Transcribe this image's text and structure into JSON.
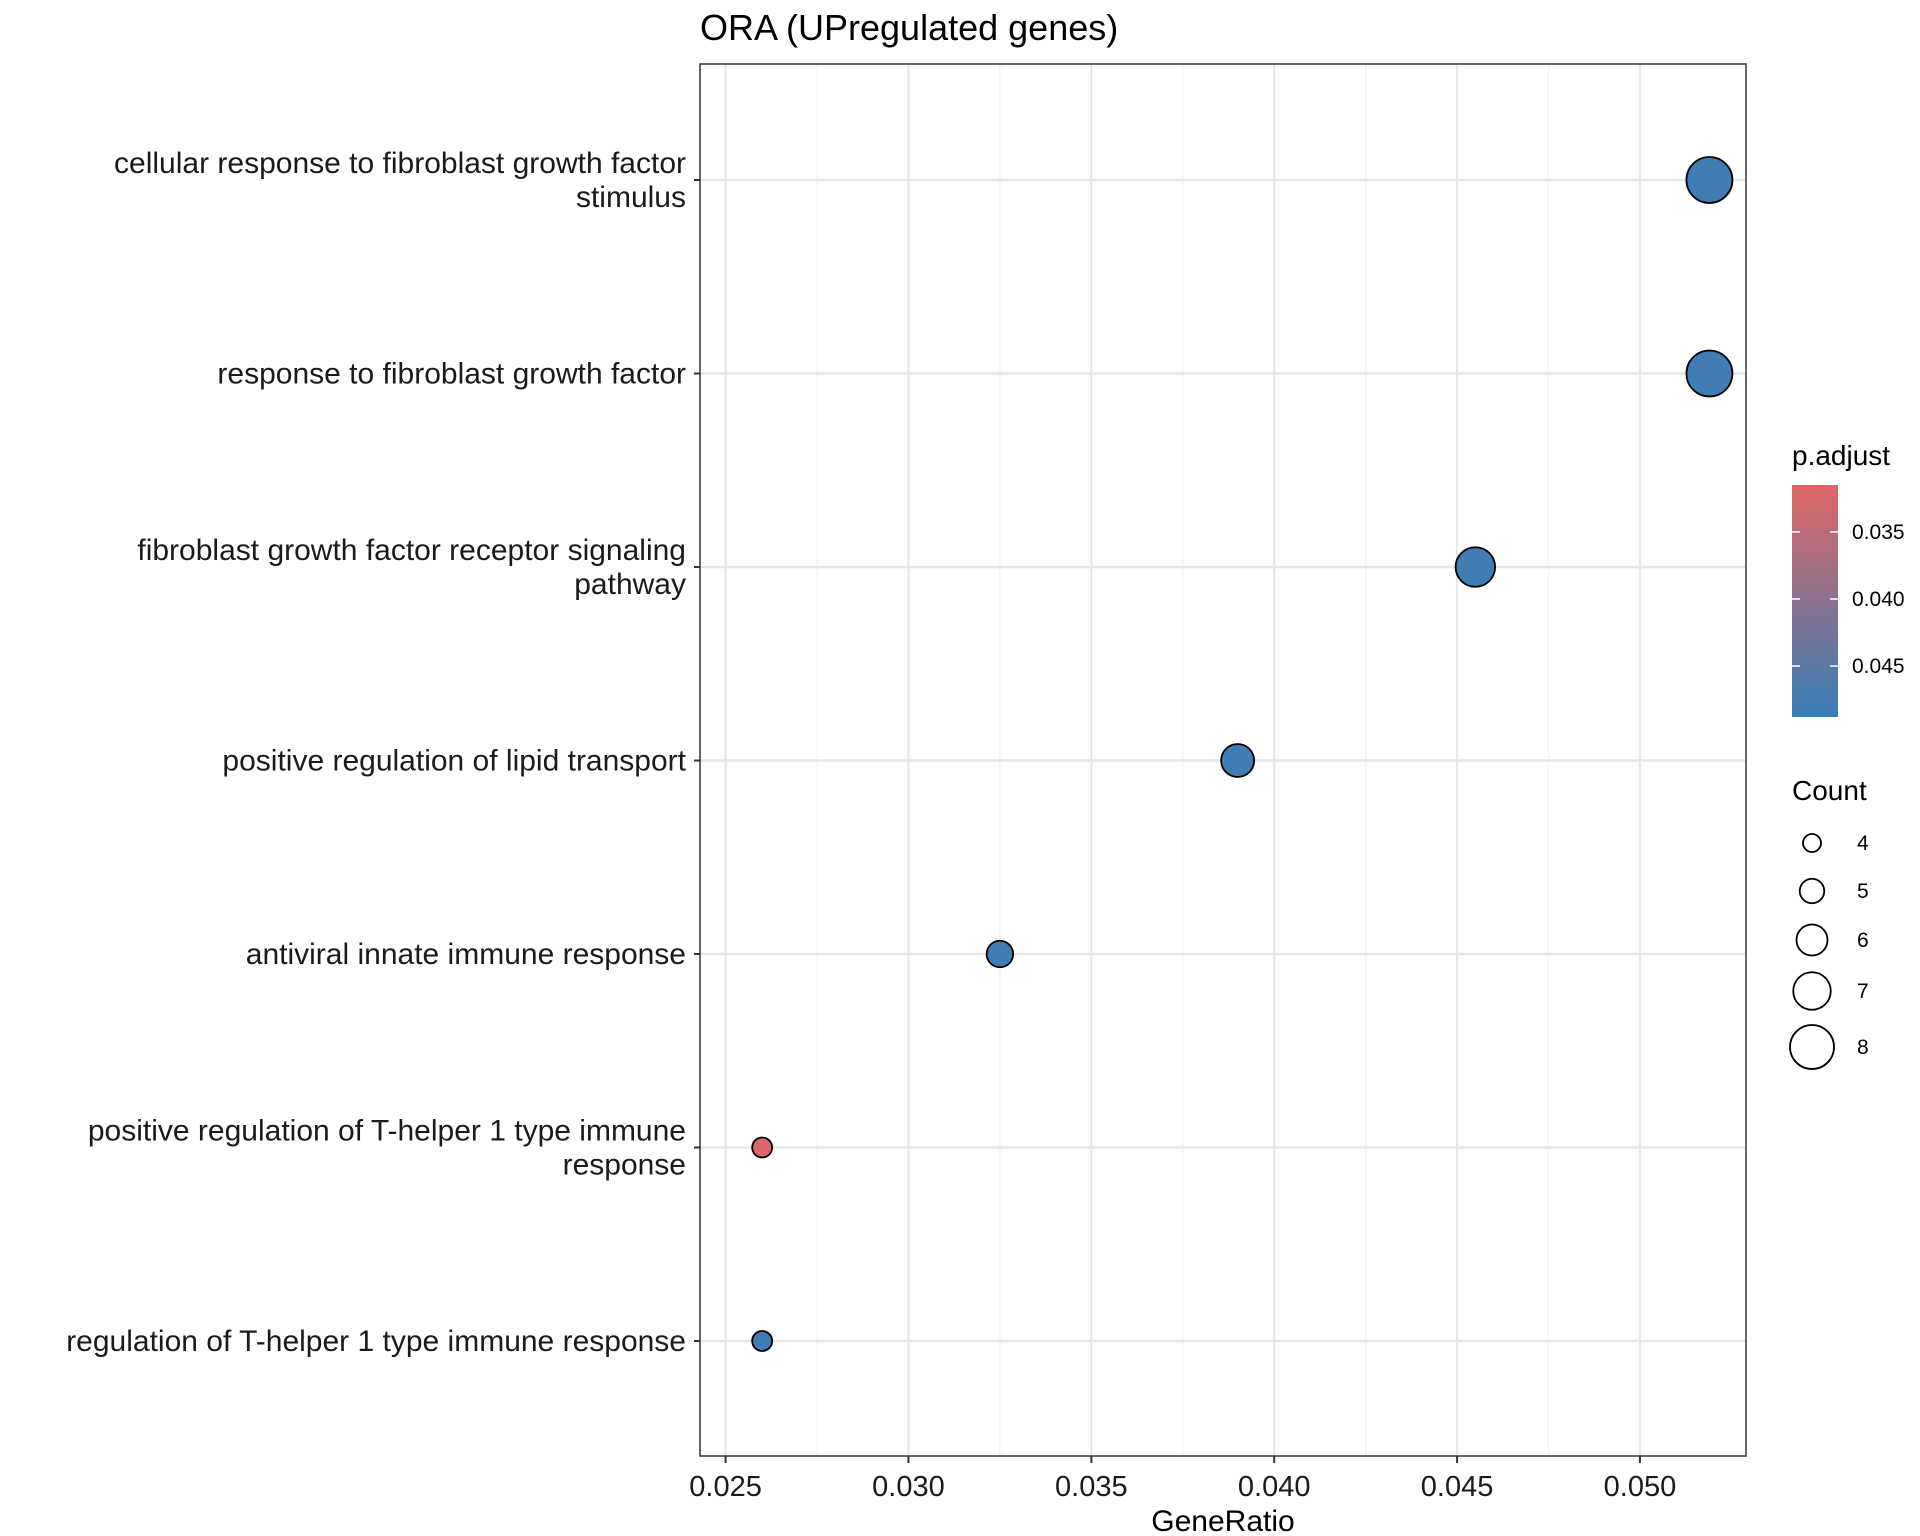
{
  "chart_data": {
    "type": "scatter",
    "title": "ORA (UPregulated genes)",
    "xlabel": "GeneRatio",
    "ylabel": "",
    "xlim": [
      0.0243,
      0.0529
    ],
    "xticks": [
      0.025,
      0.03,
      0.035,
      0.04,
      0.045,
      0.05
    ],
    "xtick_labels": [
      "0.025",
      "0.030",
      "0.035",
      "0.040",
      "0.045",
      "0.050"
    ],
    "grid": true,
    "categories": [
      {
        "lines": [
          "cellular response to fibroblast growth factor",
          "stimulus"
        ]
      },
      {
        "lines": [
          "response to fibroblast growth factor"
        ]
      },
      {
        "lines": [
          "fibroblast growth factor receptor signaling",
          "pathway"
        ]
      },
      {
        "lines": [
          "positive regulation of lipid transport"
        ]
      },
      {
        "lines": [
          "antiviral innate immune response"
        ]
      },
      {
        "lines": [
          "positive regulation of T-helper 1 type immune",
          "response"
        ]
      },
      {
        "lines": [
          "regulation of T-helper 1 type immune response"
        ]
      }
    ],
    "points": [
      {
        "category": 0,
        "x": 0.0519,
        "count": 8,
        "p_adjust": 0.048
      },
      {
        "category": 1,
        "x": 0.0519,
        "count": 8,
        "p_adjust": 0.048
      },
      {
        "category": 2,
        "x": 0.0455,
        "count": 7,
        "p_adjust": 0.048
      },
      {
        "category": 3,
        "x": 0.039,
        "count": 6,
        "p_adjust": 0.048
      },
      {
        "category": 4,
        "x": 0.0325,
        "count": 5,
        "p_adjust": 0.048
      },
      {
        "category": 5,
        "x": 0.026,
        "count": 4,
        "p_adjust": 0.032
      },
      {
        "category": 6,
        "x": 0.026,
        "count": 4,
        "p_adjust": 0.048
      }
    ],
    "color_legend": {
      "title": "p.adjust",
      "range": [
        0.0315,
        0.0488
      ],
      "ticks": [
        0.035,
        0.04,
        0.045
      ],
      "tick_labels": [
        "0.035",
        "0.040",
        "0.045"
      ],
      "low_color": "#E06666",
      "high_color": "#377EB8",
      "placement": "right"
    },
    "size_legend": {
      "title": "Count",
      "values": [
        4,
        5,
        6,
        7,
        8
      ],
      "labels": [
        "4",
        "5",
        "6",
        "7",
        "8"
      ],
      "placement": "right"
    },
    "colors": {
      "panel_border": "#333333",
      "grid_major": "#E6E6E6",
      "grid_minor": "#F3F3F3",
      "point_stroke": "#000000"
    }
  }
}
